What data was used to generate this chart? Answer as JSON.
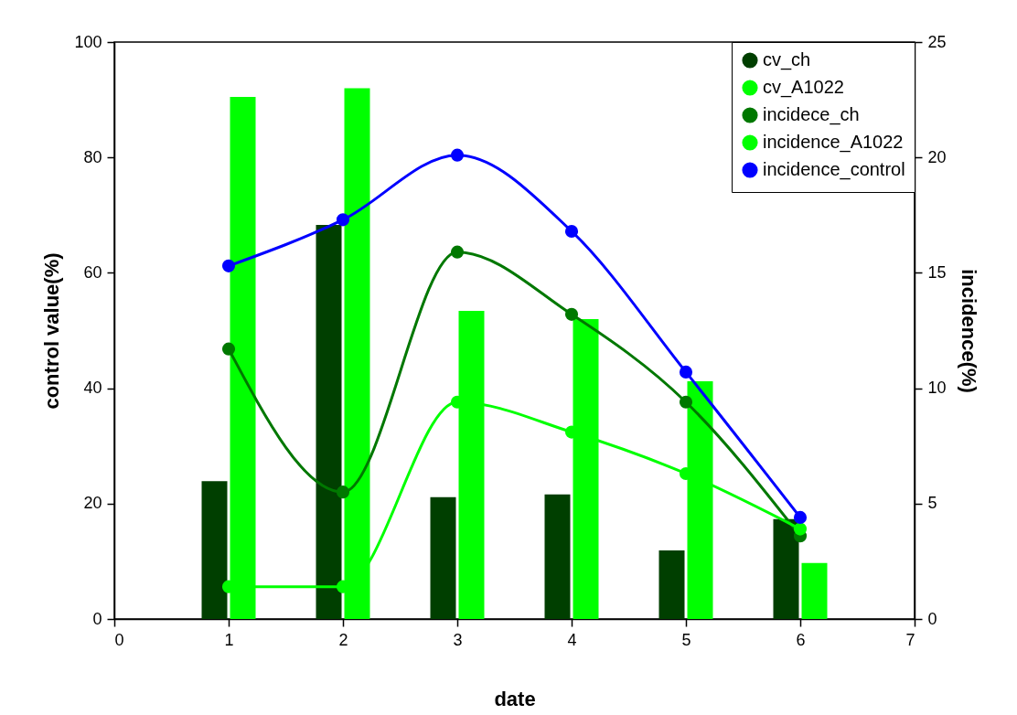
{
  "chart_data": {
    "type": "bar",
    "xlabel": "date",
    "ylabel": "control value(%)",
    "y2label": "incidence(%)",
    "x": [
      1,
      2,
      3,
      4,
      5,
      6
    ],
    "series": [
      {
        "name": "cv_ch",
        "color": "#003f00",
        "values": [
          23.9,
          68.3,
          21.1,
          21.6,
          11.9,
          17.3
        ]
      },
      {
        "name": "cv_A1022",
        "color": "#00ff00",
        "values": [
          90.5,
          92,
          53.4,
          52.0,
          41.2,
          9.7
        ]
      },
      {
        "name": "incidece_ch",
        "type": "line",
        "axis": "y2",
        "color": "#007800",
        "values": [
          11.7,
          5.5,
          15.9,
          13.2,
          9.4,
          3.6
        ]
      },
      {
        "name": "incidence_A1022",
        "type": "line",
        "axis": "y2",
        "color": "#00ff00",
        "values": [
          1.4,
          1.4,
          9.4,
          8.1,
          6.3,
          3.9
        ]
      },
      {
        "name": "incidence_control",
        "type": "line",
        "axis": "y2",
        "color": "#0000ff",
        "values": [
          15.3,
          17.3,
          20.1,
          16.8,
          10.7,
          4.4
        ]
      }
    ],
    "xlim": [
      0,
      7
    ],
    "xticks": [
      0,
      1,
      2,
      3,
      4,
      5,
      6,
      7
    ],
    "ylim": [
      0,
      100
    ],
    "yticks": [
      0,
      20,
      40,
      60,
      80,
      100
    ],
    "y2lim": [
      0,
      25
    ],
    "y2ticks": [
      0,
      5,
      10,
      15,
      20,
      25
    ],
    "legend": "top right",
    "marker": "circle",
    "line_style": "solid"
  }
}
